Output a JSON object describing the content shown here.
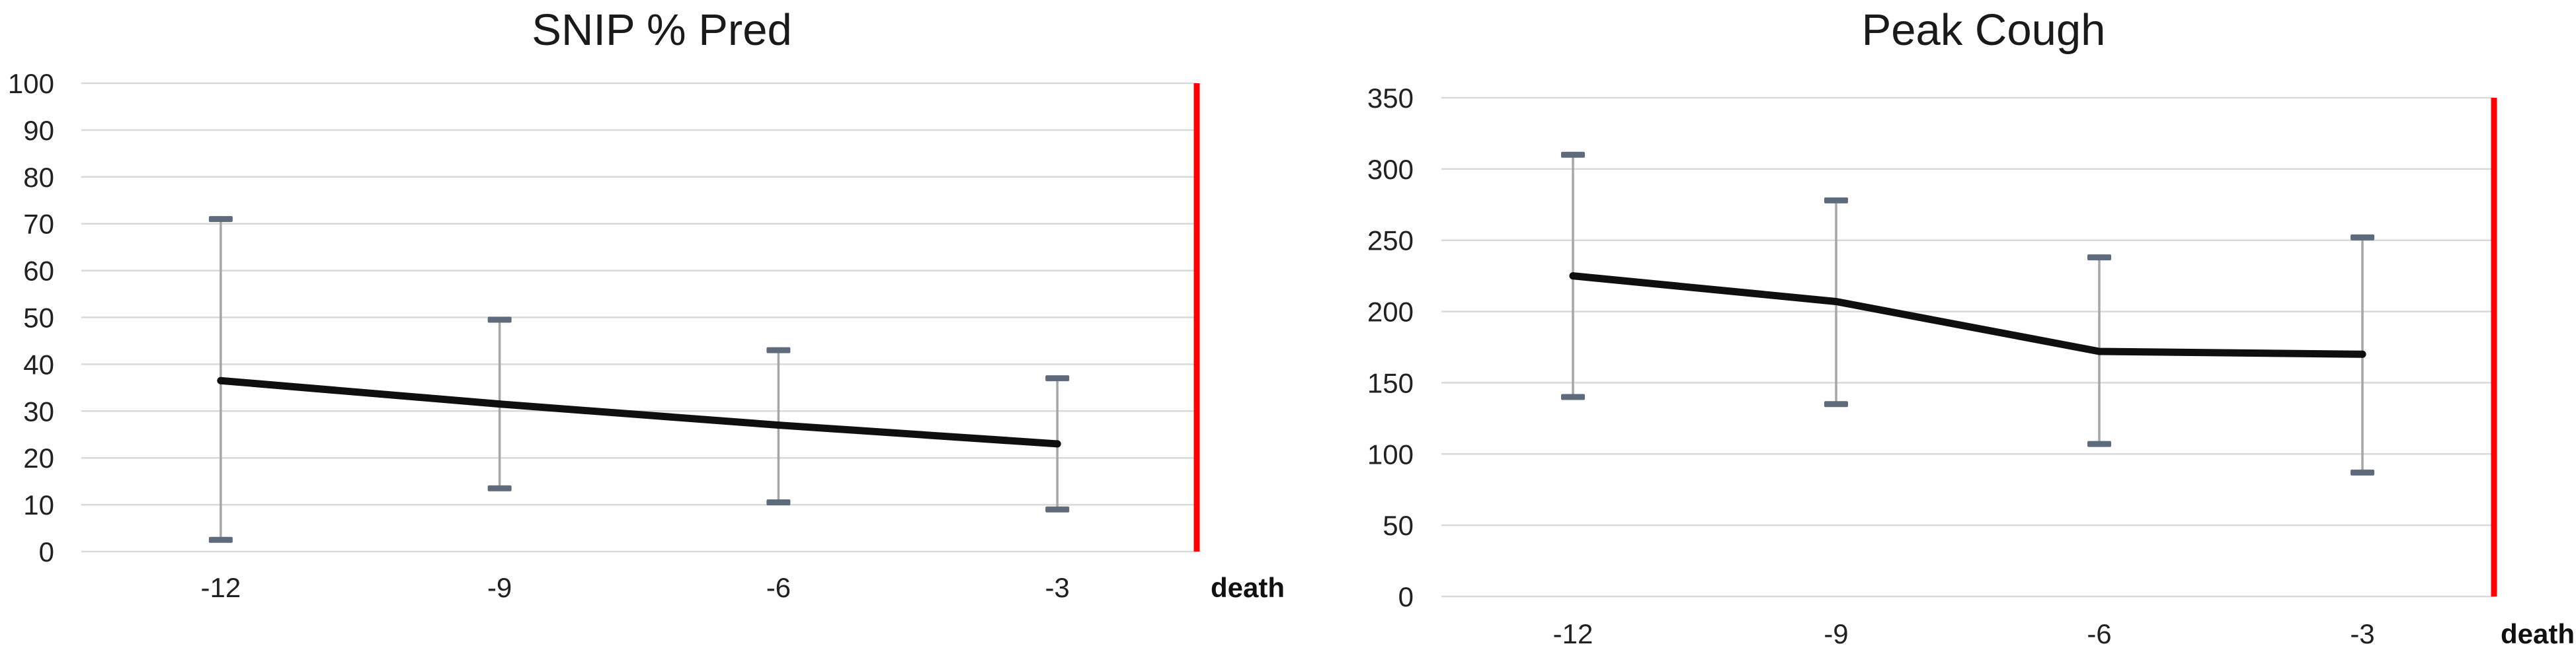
{
  "colors": {
    "background": "#ffffff",
    "gridline": "#d9d9d9",
    "series_line": "#0f0f0f",
    "error_bar_line": "#a6a6a6",
    "error_bar_cap": "#5d6b7c",
    "death_line": "#fe0000",
    "axis_text": "#212121"
  },
  "chart_data": [
    {
      "type": "line",
      "title": "SNIP % Pred",
      "categories": [
        "-12",
        "-9",
        "-6",
        "-3"
      ],
      "xlabel": "",
      "ylabel": "",
      "ylim": [
        0,
        100
      ],
      "yticks": [
        100,
        90,
        80,
        70,
        60,
        50,
        40,
        30,
        20,
        10,
        0
      ],
      "grid": true,
      "legend": "none",
      "series": [
        {
          "name": "mean",
          "values": [
            36.5,
            31.5,
            27,
            23
          ]
        },
        {
          "name": "error_upper",
          "values": [
            71,
            49.5,
            43,
            37
          ]
        },
        {
          "name": "error_lower",
          "values": [
            2.5,
            13.5,
            10.5,
            9
          ]
        }
      ],
      "annotations": {
        "death_label": "death",
        "death_line": "vertical red line at right edge of plot"
      }
    },
    {
      "type": "line",
      "title": "Peak Cough",
      "categories": [
        "-12",
        "-9",
        "-6",
        "-3"
      ],
      "xlabel": "",
      "ylabel": "",
      "ylim": [
        0,
        350
      ],
      "yticks": [
        350,
        300,
        250,
        200,
        150,
        100,
        50,
        0
      ],
      "grid": true,
      "legend": "none",
      "series": [
        {
          "name": "mean",
          "values": [
            225,
            207,
            172,
            170
          ]
        },
        {
          "name": "error_upper",
          "values": [
            310,
            278,
            238,
            252
          ]
        },
        {
          "name": "error_lower",
          "values": [
            140,
            135,
            107,
            87
          ]
        }
      ],
      "annotations": {
        "death_label": "death",
        "death_line": "vertical red line at right edge of plot"
      }
    }
  ]
}
